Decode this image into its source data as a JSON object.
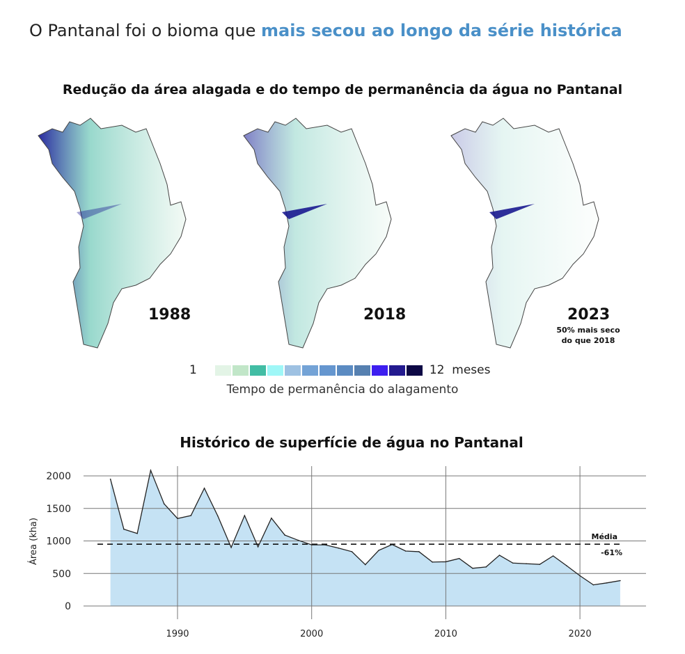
{
  "headline": {
    "plain": "O Pantanal foi o bioma que ",
    "highlight": "mais secou ao longo da série histórica",
    "highlight_color": "#4a90c8"
  },
  "maps": {
    "title": "Redução da área alagada e do tempo de permanência da água no Pantanal",
    "panels": [
      {
        "year": "1988"
      },
      {
        "year": "2018"
      },
      {
        "year": "2023",
        "note_line1": "50% mais seco",
        "note_line2": "do que 2018"
      }
    ]
  },
  "legend": {
    "min_label": "1",
    "max_label": "12  meses",
    "caption": "Tempo de permanência do alagamento",
    "colors": [
      "#e3f4e6",
      "#c1e6c8",
      "#42bda4",
      "#9ff7f7",
      "#9ec1e2",
      "#74a3d6",
      "#6596cf",
      "#5b8bc2",
      "#5680b0",
      "#3d1ef0",
      "#231a8f",
      "#0d0845"
    ]
  },
  "chart_data": {
    "type": "area",
    "title": "Histórico de superfície de água no Pantanal",
    "xlabel": "",
    "ylabel": "Área (kha)",
    "xlim": [
      1983,
      2029
    ],
    "ylim": [
      0,
      2150
    ],
    "xticks": [
      1990,
      2000,
      2010,
      2020
    ],
    "yticks": [
      0,
      500,
      1000,
      1500,
      2000
    ],
    "grid": true,
    "fill_color": "#c2e0f3",
    "line_color": "#222222",
    "x": [
      1985,
      1986,
      1987,
      1988,
      1989,
      1990,
      1991,
      1992,
      1993,
      1994,
      1995,
      1996,
      1997,
      1998,
      1999,
      2000,
      2001,
      2002,
      2003,
      2004,
      2005,
      2006,
      2007,
      2008,
      2009,
      2010,
      2011,
      2012,
      2013,
      2014,
      2015,
      2016,
      2017,
      2018,
      2019,
      2020,
      2021,
      2022,
      2023
    ],
    "y": [
      1950,
      1180,
      1115,
      2085,
      1570,
      1345,
      1390,
      1810,
      1385,
      900,
      1390,
      910,
      1350,
      1090,
      1010,
      940,
      940,
      890,
      835,
      635,
      855,
      945,
      845,
      835,
      675,
      680,
      730,
      580,
      600,
      780,
      660,
      650,
      640,
      770,
      620,
      465,
      325,
      355,
      390
    ],
    "reference_line": {
      "value": 950,
      "label": "Média",
      "style": "dashed"
    },
    "annotation": "-61%"
  }
}
